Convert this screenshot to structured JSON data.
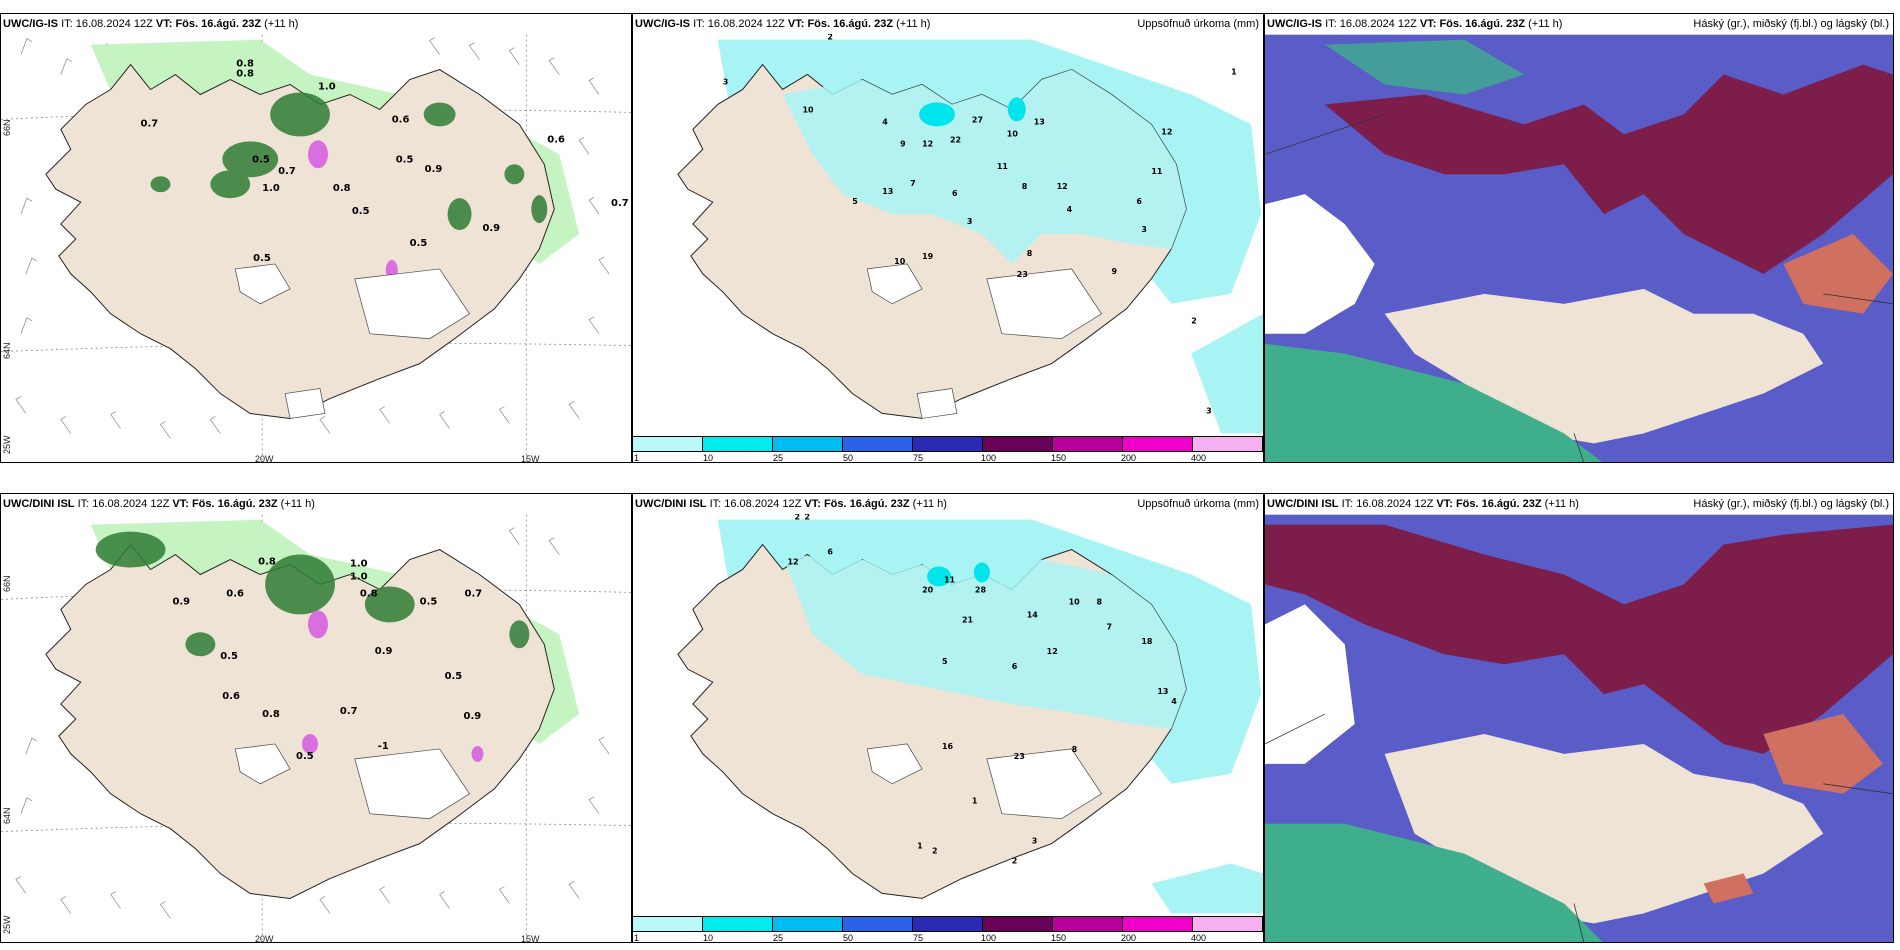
{
  "rows": [
    {
      "model": "UWC/IG-IS",
      "it_label": "IT:",
      "it_value": "16.08.2024 12Z",
      "vt_label": "VT:",
      "vt_value": "Fös. 16.ágú. 23Z",
      "lead": "(+11 h)",
      "precip_values": [
        "2",
        "3",
        "10",
        "4",
        "9",
        "12",
        "22",
        "27",
        "13",
        "10",
        "7",
        "13",
        "6",
        "11",
        "8",
        "12",
        "3",
        "5",
        "19",
        "10",
        "23",
        "8",
        "11",
        "6",
        "4",
        "3",
        "2",
        "1",
        "12",
        "9",
        "3"
      ],
      "cloud_values": [
        "0.8",
        "0.8",
        "1.0",
        "0.7",
        "0.5",
        "0.7",
        "1.0",
        "0.8",
        "0.6",
        "0.9",
        "0.5",
        "0.5",
        "0.9",
        "0.6",
        "0.7",
        "0.5",
        "0.5"
      ]
    },
    {
      "model": "UWC/DINI ISL",
      "it_label": "IT:",
      "it_value": "16.08.2024 12Z",
      "vt_label": "VT:",
      "vt_value": "Fös. 16.ágú. 23Z",
      "lead": "(+11 h)",
      "precip_values": [
        "2",
        "6",
        "12",
        "20",
        "11",
        "28",
        "21",
        "14",
        "10",
        "8",
        "7",
        "18",
        "12",
        "6",
        "13",
        "2",
        "16",
        "23",
        "8",
        "1",
        "1",
        "2",
        "2",
        "3",
        "4",
        "5"
      ],
      "cloud_values": [
        "0.8",
        "1.0",
        "0.9",
        "0.6",
        "0.8",
        "0.5",
        "0.7",
        "0.9",
        "0.5",
        "0.6",
        "0.8",
        "0.5",
        "0.7",
        "0.9",
        "1.0",
        "0.5",
        "-1"
      ]
    }
  ],
  "panels": {
    "precip_title": "Uppsöfnuð úrkoma (mm)",
    "cloud_title": "Háský (gr.), miðský (fj.bl.) og lágský (bl.)"
  },
  "axes": {
    "lat_66": "66N",
    "lat_64": "64N",
    "lon_25": "25W",
    "lon_20": "20W",
    "lon_15": "15W"
  },
  "colorbar": {
    "ticks": [
      "1",
      "10",
      "25",
      "50",
      "75",
      "100",
      "150",
      "200",
      "400"
    ],
    "colors": [
      "#b8f8f8",
      "#00ecec",
      "#00bcf0",
      "#2a62e8",
      "#2a2ab4",
      "#6a0058",
      "#b8009c",
      "#f000c8",
      "#f4b0f0"
    ]
  },
  "colors": {
    "land": "#efe3d6",
    "cyan": "#a8f4f4",
    "green_light": "#c4f2c0",
    "green_dark": "#2e7a34",
    "purple": "#5a5cc8",
    "maroon": "#7c1d4a",
    "teal": "#3fae8c"
  }
}
